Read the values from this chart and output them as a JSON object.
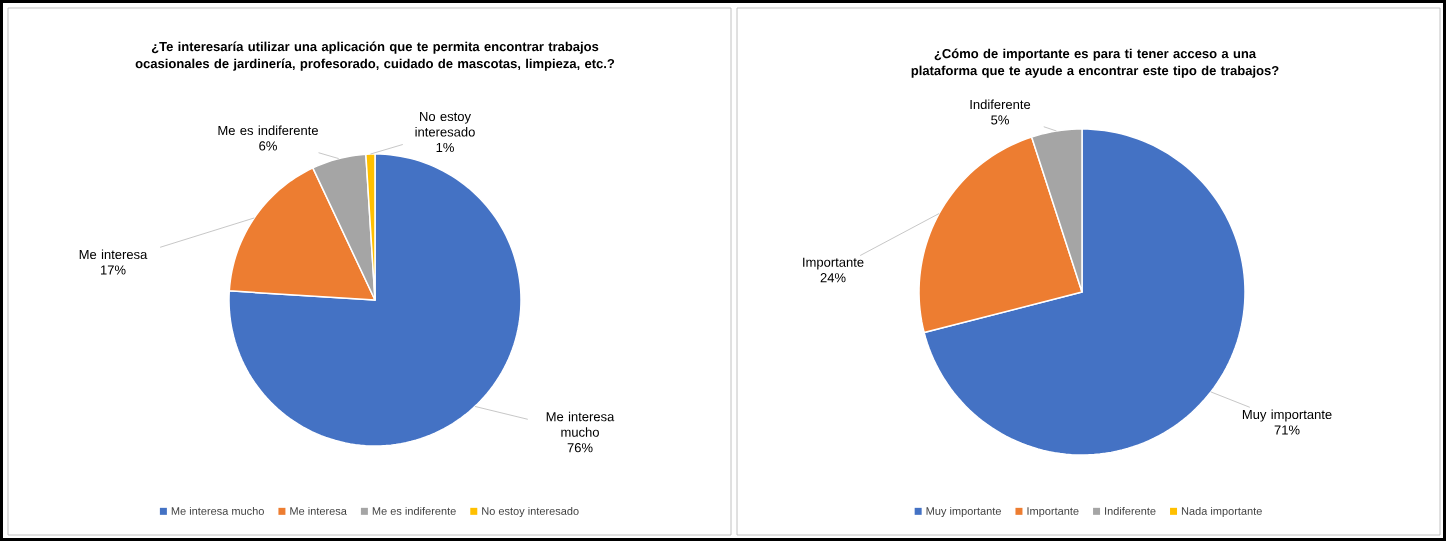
{
  "chart_data": [
    {
      "type": "pie",
      "title": "¿Te interesaría utilizar una aplicación que te permita encontrar trabajos ocasionales de jardinería, profesorado, cuidado de mascotas, limpieza, etc.?",
      "categories": [
        "Me interesa mucho",
        "Me interesa",
        "Me es indiferente",
        "No estoy interesado"
      ],
      "values": [
        76,
        17,
        6,
        1
      ],
      "value_labels": [
        "76%",
        "17%",
        "6%",
        "1%"
      ],
      "colors": [
        "#4472c4",
        "#ed7d31",
        "#a5a5a5",
        "#ffc000"
      ],
      "legend": "bottom"
    },
    {
      "type": "pie",
      "title": "¿Cómo de importante es para ti tener acceso a una plataforma que te ayude a encontrar este tipo de trabajos?",
      "categories": [
        "Muy importante",
        "Importante",
        "Indiferente",
        "Nada importante"
      ],
      "values": [
        71,
        24,
        5,
        0
      ],
      "value_labels": [
        "71%",
        "24%",
        "5%",
        null
      ],
      "colors": [
        "#4472c4",
        "#ed7d31",
        "#a5a5a5",
        "#ffc000"
      ],
      "legend": "bottom"
    }
  ]
}
